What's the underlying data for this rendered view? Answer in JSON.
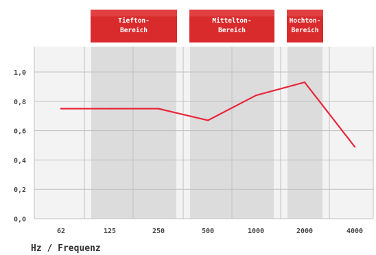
{
  "chart_data": {
    "type": "line",
    "title": "",
    "xlabel": "Hz / Frequenz",
    "ylabel": "",
    "categories": [
      "62",
      "125",
      "250",
      "500",
      "1000",
      "2000",
      "4000"
    ],
    "ylim": [
      0,
      1.2
    ],
    "y_ticks": [
      "0,0",
      "0,2",
      "0,4",
      "0,6",
      "0,8",
      "1,0"
    ],
    "grid": true,
    "series": [
      {
        "name": "",
        "values": [
          0.75,
          0.75,
          0.75,
          0.67,
          0.84,
          0.93,
          0.49
        ],
        "color": "#e8253a"
      }
    ],
    "bands": [
      {
        "label_line1": "Tiefton-",
        "label_line2": "Bereich",
        "from_category": "125",
        "to_category": "250"
      },
      {
        "label_line1": "Mittelton-",
        "label_line2": "Bereich",
        "from_category": "500",
        "to_category": "1000"
      },
      {
        "label_line1": "Hochton-",
        "label_line2": "Bereich",
        "from_category": "2000",
        "to_category": "2000"
      }
    ],
    "colors": {
      "plot_background": "#f3f3f3",
      "band_shade": "#dcdcdc",
      "grid": "#bfbfbf",
      "band_label_background": "#d92a2c",
      "line": "#e8253a"
    }
  }
}
